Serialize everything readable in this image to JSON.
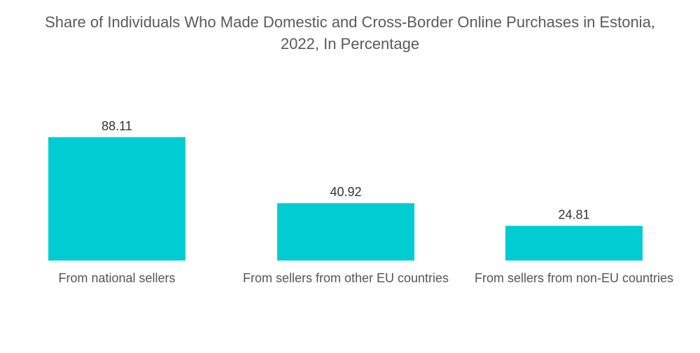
{
  "title_line1": "Share of Individuals Who Made Domestic and Cross-Border Online Purchases in Estonia,",
  "title_line2": "2022, In Percentage",
  "chart_data": {
    "type": "bar",
    "title": "Share of Individuals Who Made Domestic and Cross-Border Online Purchases in Estonia, 2022, In Percentage",
    "categories": [
      "From national sellers",
      "From sellers from other EU countries",
      "From sellers from non-EU countries"
    ],
    "values": [
      88.11,
      40.92,
      24.81
    ],
    "value_labels": [
      "88.11",
      "40.92",
      "24.81"
    ],
    "xlabel": "",
    "ylabel": "",
    "ylim": [
      0,
      100
    ],
    "grid": false,
    "legend": "none",
    "bar_color": "#00ccd1"
  }
}
